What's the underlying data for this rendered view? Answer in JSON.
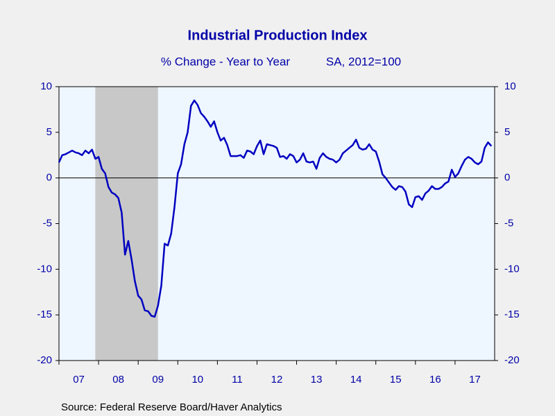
{
  "chart_data": {
    "type": "line",
    "title": "Industrial Production Index",
    "subtitle": "% Change - Year to Year",
    "subtitle_note": "SA, 2012=100",
    "source": "Source:  Federal Reserve Board/Haver Analytics",
    "x": [
      2007,
      2007.083,
      2007.167,
      2007.25,
      2007.333,
      2007.417,
      2007.5,
      2007.583,
      2007.667,
      2007.75,
      2007.833,
      2007.917,
      2008,
      2008.083,
      2008.167,
      2008.25,
      2008.333,
      2008.417,
      2008.5,
      2008.583,
      2008.667,
      2008.75,
      2008.833,
      2008.917,
      2009,
      2009.083,
      2009.167,
      2009.25,
      2009.333,
      2009.417,
      2009.5,
      2009.583,
      2009.667,
      2009.75,
      2009.833,
      2009.917,
      2010,
      2010.083,
      2010.167,
      2010.25,
      2010.333,
      2010.417,
      2010.5,
      2010.583,
      2010.667,
      2010.75,
      2010.833,
      2010.917,
      2011,
      2011.083,
      2011.167,
      2011.25,
      2011.333,
      2011.417,
      2011.5,
      2011.583,
      2011.667,
      2011.75,
      2011.833,
      2011.917,
      2012,
      2012.083,
      2012.167,
      2012.25,
      2012.333,
      2012.417,
      2012.5,
      2012.583,
      2012.667,
      2012.75,
      2012.833,
      2012.917,
      2013,
      2013.083,
      2013.167,
      2013.25,
      2013.333,
      2013.417,
      2013.5,
      2013.583,
      2013.667,
      2013.75,
      2013.833,
      2013.917,
      2014,
      2014.083,
      2014.167,
      2014.25,
      2014.333,
      2014.417,
      2014.5,
      2014.583,
      2014.667,
      2014.75,
      2014.833,
      2014.917,
      2015,
      2015.083,
      2015.167,
      2015.25,
      2015.333,
      2015.417,
      2015.5,
      2015.583,
      2015.667,
      2015.75,
      2015.833,
      2015.917,
      2016,
      2016.083,
      2016.167,
      2016.25,
      2016.333,
      2016.417,
      2016.5,
      2016.583,
      2016.667,
      2016.75,
      2016.833,
      2016.917,
      2017,
      2017.083,
      2017.167,
      2017.25,
      2017.333,
      2017.417,
      2017.5,
      2017.583,
      2017.667,
      2017.75,
      2017.833,
      2017.917
    ],
    "series": [
      {
        "color": "#0000c0",
        "values": [
          1.7,
          2.5,
          2.6,
          2.8,
          3.0,
          2.8,
          2.7,
          2.5,
          3.0,
          2.7,
          3.1,
          2.1,
          2.3,
          1.0,
          0.5,
          -1.0,
          -1.6,
          -1.8,
          -2.2,
          -3.8,
          -8.4,
          -6.9,
          -8.9,
          -11.3,
          -12.9,
          -13.3,
          -14.5,
          -14.6,
          -15.1,
          -15.2,
          -14.0,
          -11.8,
          -7.2,
          -7.4,
          -6.1,
          -3.2,
          0.5,
          1.5,
          3.7,
          5.0,
          7.9,
          8.5,
          8.0,
          7.1,
          6.7,
          6.2,
          5.6,
          6.2,
          5.0,
          4.1,
          4.4,
          3.6,
          2.4,
          2.4,
          2.4,
          2.5,
          2.2,
          3.0,
          2.9,
          2.6,
          3.5,
          4.1,
          2.6,
          3.7,
          3.6,
          3.5,
          3.3,
          2.3,
          2.4,
          2.1,
          2.6,
          2.4,
          1.7,
          2.0,
          2.7,
          1.8,
          1.7,
          1.8,
          1.0,
          2.2,
          2.7,
          2.3,
          2.1,
          2.0,
          1.7,
          2.0,
          2.7,
          3.0,
          3.3,
          3.6,
          4.2,
          3.3,
          3.1,
          3.2,
          3.7,
          3.1,
          2.9,
          1.8,
          0.4,
          0.0,
          -0.5,
          -1.0,
          -1.3,
          -0.9,
          -1.0,
          -1.5,
          -2.9,
          -3.2,
          -2.1,
          -2.0,
          -2.4,
          -1.7,
          -1.4,
          -0.9,
          -1.2,
          -1.2,
          -1.0,
          -0.6,
          -0.4,
          0.9,
          0.1,
          0.5,
          1.3,
          2.0,
          2.3,
          2.1,
          1.7,
          1.5,
          1.8,
          3.3,
          3.9,
          3.5
        ]
      }
    ],
    "recessions": [
      {
        "start": 2007.917,
        "end": 2009.5
      }
    ],
    "xlim": [
      2007,
      2018
    ],
    "xticks": [
      {
        "value": 2007,
        "label": "07"
      },
      {
        "value": 2008,
        "label": "08"
      },
      {
        "value": 2009,
        "label": "09"
      },
      {
        "value": 2010,
        "label": "10"
      },
      {
        "value": 2011,
        "label": "11"
      },
      {
        "value": 2012,
        "label": "12"
      },
      {
        "value": 2013,
        "label": "13"
      },
      {
        "value": 2014,
        "label": "14"
      },
      {
        "value": 2015,
        "label": "15"
      },
      {
        "value": 2016,
        "label": "16"
      },
      {
        "value": 2017,
        "label": "17"
      }
    ],
    "ylim": [
      -20,
      10
    ],
    "yticks": [
      10,
      5,
      0,
      -5,
      -10,
      -15,
      -20
    ],
    "y2lim": [
      -20,
      10
    ],
    "y2ticks": [
      10,
      5,
      0,
      -5,
      -10,
      -15,
      -20
    ]
  }
}
